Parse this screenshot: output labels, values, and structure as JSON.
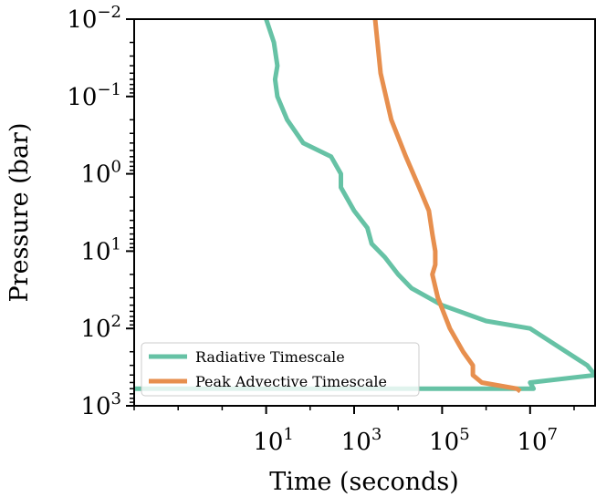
{
  "chart_data": {
    "type": "line",
    "xlabel": "Time (seconds)",
    "ylabel": "Pressure (bar)",
    "x_scale": "log",
    "y_scale": "log",
    "y_inverted": true,
    "xlim": [
      0.01,
      300000000
    ],
    "ylim": [
      1000,
      0.01
    ],
    "x_ticks": [
      {
        "value": 10,
        "base": "10",
        "exp": "1"
      },
      {
        "value": 1000,
        "base": "10",
        "exp": "3"
      },
      {
        "value": 100000,
        "base": "10",
        "exp": "5"
      },
      {
        "value": 10000000,
        "base": "10",
        "exp": "7"
      }
    ],
    "y_ticks": [
      {
        "value": 0.01,
        "base": "10",
        "exp": "−2"
      },
      {
        "value": 0.1,
        "base": "10",
        "exp": "−1"
      },
      {
        "value": 1,
        "base": "10",
        "exp": "0"
      },
      {
        "value": 10,
        "base": "10",
        "exp": "1"
      },
      {
        "value": 100,
        "base": "10",
        "exp": "2"
      },
      {
        "value": 1000,
        "base": "10",
        "exp": "3"
      }
    ],
    "grid": false,
    "legend_position": "lower-left",
    "series": [
      {
        "name": "Radiative Timescale",
        "color": "#66c2a5",
        "points": [
          [
            10,
            0.01
          ],
          [
            15,
            0.02
          ],
          [
            18,
            0.04
          ],
          [
            16,
            0.06
          ],
          [
            18,
            0.1
          ],
          [
            30,
            0.2
          ],
          [
            70,
            0.4
          ],
          [
            300,
            0.6
          ],
          [
            500,
            1
          ],
          [
            500,
            1.5
          ],
          [
            1000,
            3
          ],
          [
            2000,
            5
          ],
          [
            2500,
            8
          ],
          [
            5000,
            12
          ],
          [
            10000,
            20
          ],
          [
            20000,
            30
          ],
          [
            100000,
            50
          ],
          [
            1000000,
            80
          ],
          [
            10000000,
            100
          ],
          [
            200000000,
            300
          ],
          [
            300000000,
            400
          ],
          [
            10000000,
            500
          ],
          [
            12000000,
            600
          ],
          [
            0.01,
            600
          ]
        ]
      },
      {
        "name": "Peak Advective Timescale",
        "color": "#e78f4e",
        "points": [
          [
            3000,
            0.01
          ],
          [
            4000,
            0.05
          ],
          [
            7000,
            0.2
          ],
          [
            15000,
            0.6
          ],
          [
            30000,
            1.5
          ],
          [
            50000,
            3
          ],
          [
            60000,
            6
          ],
          [
            70000,
            10
          ],
          [
            70000,
            15
          ],
          [
            60000,
            20
          ],
          [
            80000,
            40
          ],
          [
            150000,
            100
          ],
          [
            300000,
            200
          ],
          [
            500000,
            300
          ],
          [
            500000,
            400
          ],
          [
            800000,
            500
          ],
          [
            5000000,
            600
          ],
          [
            6000000,
            650
          ]
        ]
      }
    ]
  }
}
